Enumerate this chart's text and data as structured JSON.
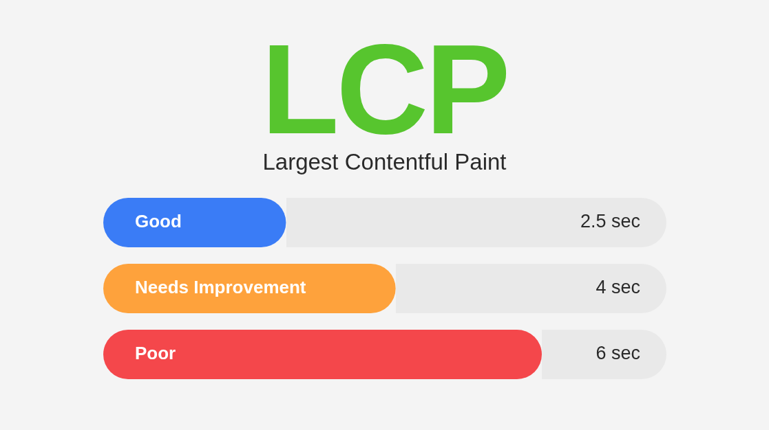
{
  "chart_data": {
    "type": "bar",
    "orientation": "horizontal",
    "title": "LCP",
    "subtitle": "Largest Contentful Paint",
    "categories": [
      "Good",
      "Needs Improvement",
      "Poor"
    ],
    "values": [
      2.5,
      4,
      6
    ],
    "colors": [
      "#3a7cf6",
      "#fea23c",
      "#f4474b"
    ],
    "value_labels": [
      "2.5 sec",
      "4 sec",
      "6 sec"
    ]
  }
}
